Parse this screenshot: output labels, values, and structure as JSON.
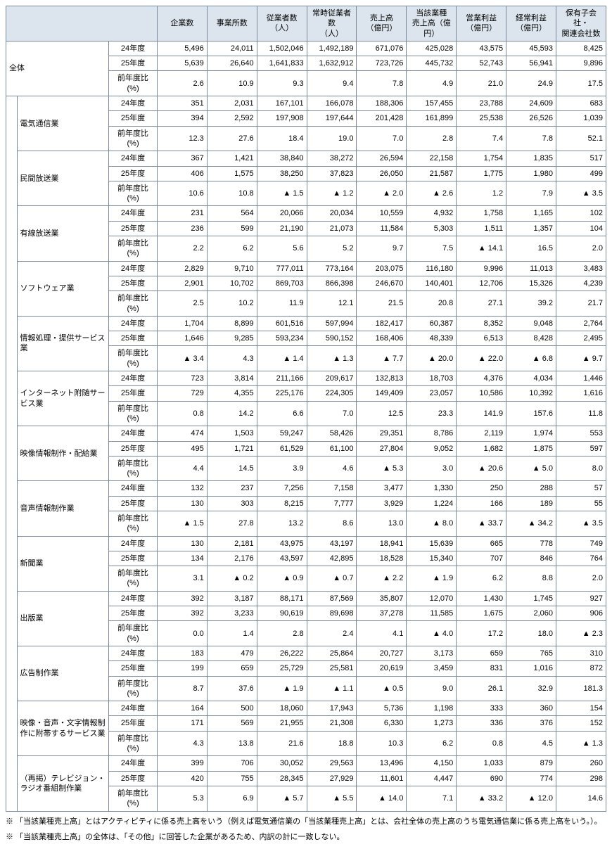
{
  "headers": {
    "companies": "企業数",
    "establishments": "事業所数",
    "employees": "従業者数\n（人）",
    "regular_employees": "常時従業者数\n（人）",
    "sales": "売上高\n（億円）",
    "industry_sales": "当該業種\n売上高（億円）",
    "operating_profit": "営業利益\n（億円）",
    "ordinary_profit": "経常利益\n（億円）",
    "subsidiaries": "保有子会社・\n関連会社数"
  },
  "total_label": "全体",
  "year_labels": [
    "24年度",
    "25年度",
    "前年度比(%)"
  ],
  "categories": [
    {
      "name": "電気通信業",
      "rows": [
        [
          "351",
          "2,031",
          "167,101",
          "166,078",
          "188,306",
          "157,455",
          "23,788",
          "24,609",
          "683"
        ],
        [
          "394",
          "2,592",
          "197,908",
          "197,644",
          "201,428",
          "161,899",
          "25,538",
          "26,526",
          "1,039"
        ],
        [
          "12.3",
          "27.6",
          "18.4",
          "19.0",
          "7.0",
          "2.8",
          "7.4",
          "7.8",
          "52.1"
        ]
      ]
    },
    {
      "name": "民間放送業",
      "rows": [
        [
          "367",
          "1,421",
          "38,840",
          "38,272",
          "26,594",
          "22,158",
          "1,754",
          "1,835",
          "517"
        ],
        [
          "406",
          "1,575",
          "38,250",
          "37,823",
          "26,050",
          "21,587",
          "1,775",
          "1,980",
          "499"
        ],
        [
          "10.6",
          "10.8",
          "▲ 1.5",
          "▲ 1.2",
          "▲ 2.0",
          "▲ 2.6",
          "1.2",
          "7.9",
          "▲ 3.5"
        ]
      ]
    },
    {
      "name": "有線放送業",
      "rows": [
        [
          "231",
          "564",
          "20,066",
          "20,034",
          "10,559",
          "4,932",
          "1,758",
          "1,165",
          "102"
        ],
        [
          "236",
          "599",
          "21,190",
          "21,073",
          "11,584",
          "5,303",
          "1,511",
          "1,357",
          "104"
        ],
        [
          "2.2",
          "6.2",
          "5.6",
          "5.2",
          "9.7",
          "7.5",
          "▲ 14.1",
          "16.5",
          "2.0"
        ]
      ]
    },
    {
      "name": "ソフトウェア業",
      "rows": [
        [
          "2,829",
          "9,710",
          "777,011",
          "773,164",
          "203,075",
          "116,180",
          "9,996",
          "11,013",
          "3,483"
        ],
        [
          "2,901",
          "10,702",
          "869,703",
          "866,398",
          "246,670",
          "140,401",
          "12,706",
          "15,326",
          "4,239"
        ],
        [
          "2.5",
          "10.2",
          "11.9",
          "12.1",
          "21.5",
          "20.8",
          "27.1",
          "39.2",
          "21.7"
        ]
      ]
    },
    {
      "name": "情報処理・提供サービス業",
      "rows": [
        [
          "1,704",
          "8,899",
          "601,516",
          "597,994",
          "182,417",
          "60,387",
          "8,352",
          "9,048",
          "2,764"
        ],
        [
          "1,646",
          "9,285",
          "593,234",
          "590,152",
          "168,406",
          "48,339",
          "6,513",
          "8,428",
          "2,495"
        ],
        [
          "▲ 3.4",
          "4.3",
          "▲ 1.4",
          "▲ 1.3",
          "▲ 7.7",
          "▲ 20.0",
          "▲ 22.0",
          "▲ 6.8",
          "▲ 9.7"
        ]
      ]
    },
    {
      "name": "インターネット附随サービス業",
      "rows": [
        [
          "723",
          "3,814",
          "211,166",
          "209,617",
          "132,813",
          "18,703",
          "4,376",
          "4,034",
          "1,446"
        ],
        [
          "729",
          "4,355",
          "225,176",
          "224,305",
          "149,409",
          "23,057",
          "10,586",
          "10,392",
          "1,616"
        ],
        [
          "0.8",
          "14.2",
          "6.6",
          "7.0",
          "12.5",
          "23.3",
          "141.9",
          "157.6",
          "11.8"
        ]
      ]
    },
    {
      "name": "映像情報制作・配給業",
      "rows": [
        [
          "474",
          "1,503",
          "59,247",
          "58,426",
          "29,351",
          "8,786",
          "2,119",
          "1,974",
          "553"
        ],
        [
          "495",
          "1,721",
          "61,529",
          "61,100",
          "27,804",
          "9,052",
          "1,682",
          "1,875",
          "597"
        ],
        [
          "4.4",
          "14.5",
          "3.9",
          "4.6",
          "▲ 5.3",
          "3.0",
          "▲ 20.6",
          "▲ 5.0",
          "8.0"
        ]
      ]
    },
    {
      "name": "音声情報制作業",
      "rows": [
        [
          "132",
          "237",
          "7,256",
          "7,158",
          "3,477",
          "1,330",
          "250",
          "288",
          "57"
        ],
        [
          "130",
          "303",
          "8,215",
          "7,777",
          "3,929",
          "1,224",
          "166",
          "189",
          "55"
        ],
        [
          "▲ 1.5",
          "27.8",
          "13.2",
          "8.6",
          "13.0",
          "▲ 8.0",
          "▲ 33.7",
          "▲ 34.2",
          "▲ 3.5"
        ]
      ]
    },
    {
      "name": "新聞業",
      "rows": [
        [
          "130",
          "2,181",
          "43,975",
          "43,197",
          "18,941",
          "15,639",
          "665",
          "778",
          "749"
        ],
        [
          "134",
          "2,176",
          "43,597",
          "42,895",
          "18,528",
          "15,340",
          "707",
          "846",
          "764"
        ],
        [
          "3.1",
          "▲ 0.2",
          "▲ 0.9",
          "▲ 0.7",
          "▲ 2.2",
          "▲ 1.9",
          "6.2",
          "8.8",
          "2.0"
        ]
      ]
    },
    {
      "name": "出版業",
      "rows": [
        [
          "392",
          "3,187",
          "88,171",
          "87,569",
          "35,807",
          "12,070",
          "1,430",
          "1,745",
          "927"
        ],
        [
          "392",
          "3,233",
          "90,619",
          "89,698",
          "37,278",
          "11,585",
          "1,675",
          "2,060",
          "906"
        ],
        [
          "0.0",
          "1.4",
          "2.8",
          "2.4",
          "4.1",
          "▲ 4.0",
          "17.2",
          "18.0",
          "▲ 2.3"
        ]
      ]
    },
    {
      "name": "広告制作業",
      "rows": [
        [
          "183",
          "479",
          "26,222",
          "25,864",
          "20,727",
          "3,173",
          "659",
          "765",
          "310"
        ],
        [
          "199",
          "659",
          "25,729",
          "25,581",
          "20,619",
          "3,459",
          "831",
          "1,016",
          "872"
        ],
        [
          "8.7",
          "37.6",
          "▲ 1.9",
          "▲ 1.1",
          "▲ 0.5",
          "9.0",
          "26.1",
          "32.9",
          "181.3"
        ]
      ]
    },
    {
      "name": "映像・音声・文字情報制作に附帯するサービス業",
      "rows": [
        [
          "164",
          "500",
          "18,060",
          "17,943",
          "5,736",
          "1,198",
          "333",
          "360",
          "154"
        ],
        [
          "171",
          "569",
          "21,955",
          "21,308",
          "6,330",
          "1,273",
          "336",
          "376",
          "152"
        ],
        [
          "4.3",
          "13.8",
          "21.6",
          "18.8",
          "10.3",
          "6.2",
          "0.8",
          "4.5",
          "▲ 1.3"
        ]
      ]
    },
    {
      "name": "（再掲）テレビジョン・ラジオ番組制作業",
      "rows": [
        [
          "399",
          "706",
          "30,052",
          "29,563",
          "13,496",
          "4,150",
          "1,033",
          "879",
          "260"
        ],
        [
          "420",
          "755",
          "28,345",
          "27,929",
          "11,601",
          "4,447",
          "690",
          "774",
          "298"
        ],
        [
          "5.3",
          "6.9",
          "▲ 5.7",
          "▲ 5.5",
          "▲ 14.0",
          "7.1",
          "▲ 33.2",
          "▲ 12.0",
          "14.6"
        ]
      ]
    }
  ],
  "total_rows": [
    [
      "5,496",
      "24,011",
      "1,502,046",
      "1,492,189",
      "671,076",
      "425,028",
      "43,575",
      "45,593",
      "8,425"
    ],
    [
      "5,639",
      "26,640",
      "1,641,833",
      "1,632,912",
      "723,726",
      "445,732",
      "52,743",
      "56,941",
      "9,896"
    ],
    [
      "2.6",
      "10.9",
      "9.3",
      "9.4",
      "7.8",
      "4.9",
      "21.0",
      "24.9",
      "17.5"
    ]
  ],
  "notes": [
    "※ 「当該業種売上高」とはアクティビティに係る売上高をいう（例えば電気通信業の「当該業種売上高」とは、会社全体の売上高のうち電気通信業に係る売上高をいう。）。",
    "※ 「当該業種売上高」の全体は、「その他」に回答した企業があるため、内訳の計に一致しない。"
  ]
}
